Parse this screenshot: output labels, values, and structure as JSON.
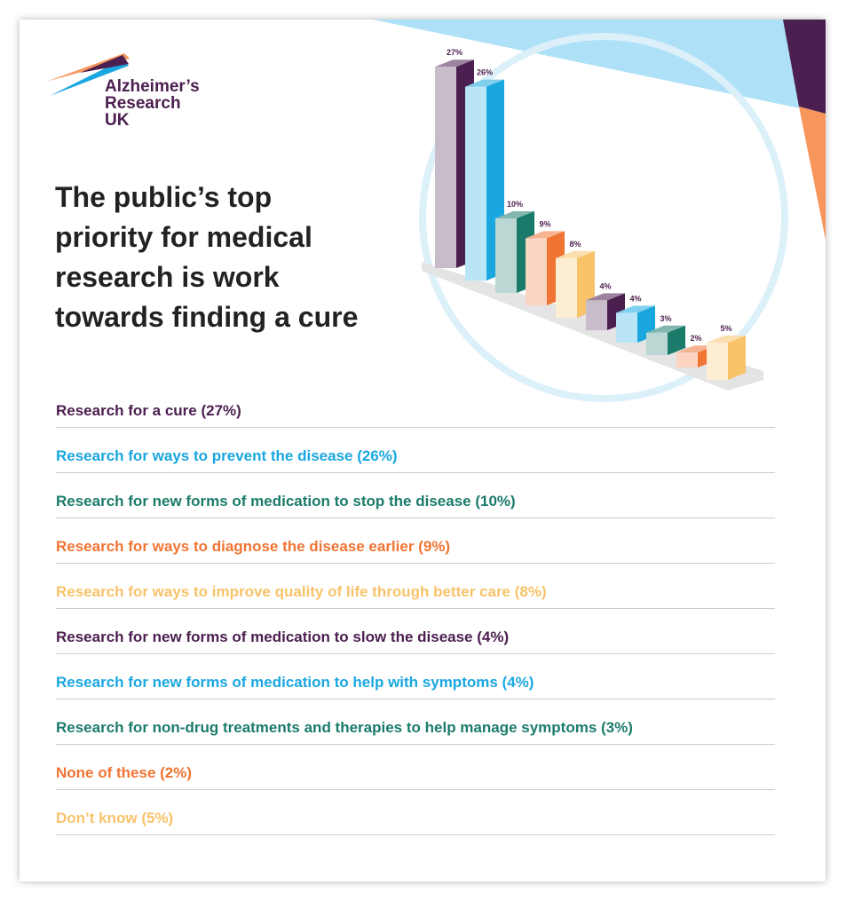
{
  "logo": [
    "Alzheimer’s",
    "Research",
    "UK"
  ],
  "chart_data": {
    "type": "bar3d",
    "title": "The public’s top priority for medical research is work towards finding a cure",
    "categories": [
      "Research for a cure (27%)",
      "Research for ways to prevent the disease (26%)",
      "Research for new forms of medication to stop the disease (10%)",
      "Research for ways to diagnose the disease earlier (9%)",
      "Research for ways to improve quality of life through better care (8%)",
      "Research for new forms of medication to slow the disease (4%)",
      "Research for new forms of medication to help with symptoms (4%)",
      "Research for non-drug treatments and therapies to help manage symptoms (3%)",
      "None of these (2%)",
      "Don’t know (5%)"
    ],
    "values": [
      27,
      26,
      10,
      9,
      8,
      4,
      4,
      3,
      2,
      5
    ],
    "value_labels": [
      "27%",
      "26%",
      "10%",
      "9%",
      "8%",
      "4%",
      "4%",
      "3%",
      "2%",
      "5%"
    ],
    "colors": [
      "#4b1f4f",
      "#1aa7e0",
      "#1b7b6b",
      "#f07433",
      "#f8c36a",
      "#4b1f4f",
      "#1aa7e0",
      "#1b7b6b",
      "#f07433",
      "#f8c36a"
    ]
  }
}
